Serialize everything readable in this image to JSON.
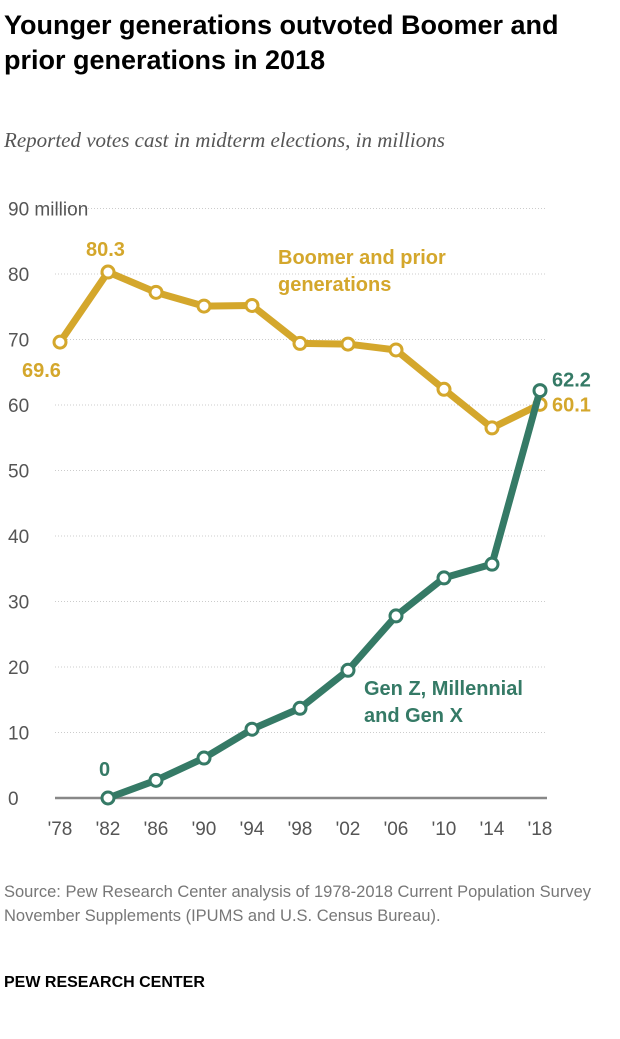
{
  "title": "Younger generations outvoted Boomer and prior generations in 2018",
  "subtitle": "Reported votes cast in midterm elections, in millions",
  "source": "Source: Pew Research Center analysis of 1978-2018 Current Population Survey November Supplements (IPUMS and U.S. Census Bureau).",
  "brand": "PEW RESEARCH CENTER",
  "chart_data": {
    "type": "line",
    "categories": [
      "'78",
      "'82",
      "'86",
      "'90",
      "'94",
      "'98",
      "'02",
      "'06",
      "'10",
      "'14",
      "'18"
    ],
    "ylim": [
      0,
      90
    ],
    "yticks": [
      0,
      10,
      20,
      30,
      40,
      50,
      60,
      70,
      80,
      90
    ],
    "ytick_labels": [
      "0",
      "10",
      "20",
      "30",
      "40",
      "50",
      "60",
      "70",
      "80",
      "90 million"
    ],
    "grid": true,
    "series": [
      {
        "name": "Boomer and prior generations",
        "color": "#D4A72C",
        "values": [
          69.6,
          80.3,
          77.2,
          75.1,
          75.2,
          69.4,
          69.3,
          68.4,
          62.4,
          56.5,
          60.1
        ],
        "labels": {
          "0": "69.6",
          "1": "80.3",
          "10": "60.1"
        }
      },
      {
        "name": "Gen Z, Millennial and Gen X",
        "color": "#357A66",
        "values": [
          null,
          0,
          2.7,
          6.1,
          10.5,
          13.7,
          19.5,
          27.8,
          33.6,
          35.7,
          62.2
        ],
        "labels": {
          "1": "0",
          "10": "62.2"
        }
      }
    ]
  }
}
